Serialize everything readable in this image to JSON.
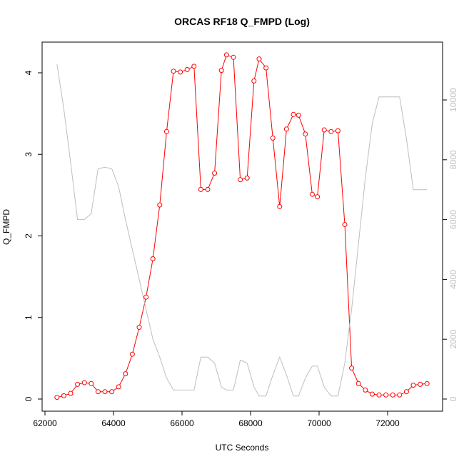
{
  "chart_data": {
    "type": "line",
    "title": "ORCAS RF18 Q_FMPD (Log)",
    "xlabel": "UTC Seconds",
    "ylabel": "Q_FMPD",
    "xlim": [
      62000,
      73500
    ],
    "ylim": [
      0,
      4.2
    ],
    "ylim_right": [
      0,
      11200
    ],
    "x_ticks": [
      62000,
      64000,
      66000,
      68000,
      70000,
      72000
    ],
    "x_tick_labels": [
      "62000",
      "64000",
      "66000",
      "68000",
      "70000",
      "72000"
    ],
    "y_ticks": [
      0,
      1,
      2,
      3,
      4
    ],
    "y_tick_labels": [
      "0",
      "1",
      "2",
      "3",
      "4"
    ],
    "y_right_ticks": [
      0,
      2000,
      4000,
      6000,
      8000,
      10000
    ],
    "y_right_tick_labels": [
      "0",
      "2000",
      "4000",
      "6000",
      "8000",
      "10000"
    ],
    "grid": false,
    "series": [
      {
        "style": "line-points",
        "color": "#ff0000",
        "axis": "left",
        "x": [
          62350,
          62550,
          62750,
          62950,
          63150,
          63350,
          63550,
          63750,
          63950,
          64150,
          64350,
          64550,
          64750,
          64950,
          65150,
          65350,
          65550,
          65750,
          65950,
          66150,
          66350,
          66550,
          66750,
          66950,
          67150,
          67300,
          67500,
          67700,
          67900,
          68100,
          68250,
          68450,
          68650,
          68850,
          69050,
          69250,
          69400,
          69600,
          69800,
          69950,
          70150,
          70350,
          70550,
          70750,
          70950,
          71150,
          71350,
          71550,
          71750,
          71950,
          72150,
          72350,
          72550,
          72750,
          72950,
          73150
        ],
        "values": [
          0.02,
          0.04,
          0.07,
          0.18,
          0.2,
          0.19,
          0.09,
          0.09,
          0.09,
          0.15,
          0.31,
          0.55,
          0.88,
          1.25,
          1.72,
          2.38,
          3.28,
          4.02,
          4.01,
          4.04,
          4.08,
          2.57,
          2.57,
          2.77,
          4.03,
          4.22,
          4.19,
          2.69,
          2.71,
          3.9,
          4.17,
          4.06,
          3.2,
          2.36,
          3.31,
          3.49,
          3.48,
          3.25,
          2.51,
          2.48,
          3.3,
          3.28,
          3.29,
          2.14,
          0.38,
          0.19,
          0.11,
          0.06,
          0.05,
          0.05,
          0.05,
          0.05,
          0.09,
          0.17,
          0.18,
          0.19
        ]
      },
      {
        "style": "line",
        "color": "#bebebe",
        "axis": "right",
        "x": [
          62350,
          62550,
          62750,
          62950,
          63150,
          63350,
          63550,
          63750,
          63950,
          64150,
          64350,
          64550,
          64750,
          64950,
          65150,
          65350,
          65550,
          65750,
          65950,
          66150,
          66350,
          66550,
          66750,
          66950,
          67150,
          67300,
          67500,
          67700,
          67900,
          68100,
          68250,
          68450,
          68650,
          68850,
          69050,
          69250,
          69400,
          69600,
          69800,
          69950,
          70150,
          70350,
          70550,
          70750,
          70950,
          71150,
          71350,
          71550,
          71750,
          71950,
          72150,
          72350,
          72550,
          72750,
          72950,
          73150
        ],
        "values": [
          11200,
          9700,
          7900,
          6000,
          6000,
          6200,
          7700,
          7750,
          7700,
          7100,
          6000,
          5000,
          4000,
          3000,
          2000,
          1400,
          700,
          300,
          300,
          300,
          300,
          1400,
          1400,
          1200,
          400,
          300,
          300,
          1300,
          1200,
          400,
          100,
          100,
          800,
          1400,
          800,
          100,
          100,
          700,
          1100,
          1100,
          400,
          100,
          100,
          1200,
          3000,
          5200,
          7400,
          9200,
          10100,
          10100,
          10100,
          10100,
          8700,
          7000,
          7000,
          7000
        ]
      }
    ]
  }
}
